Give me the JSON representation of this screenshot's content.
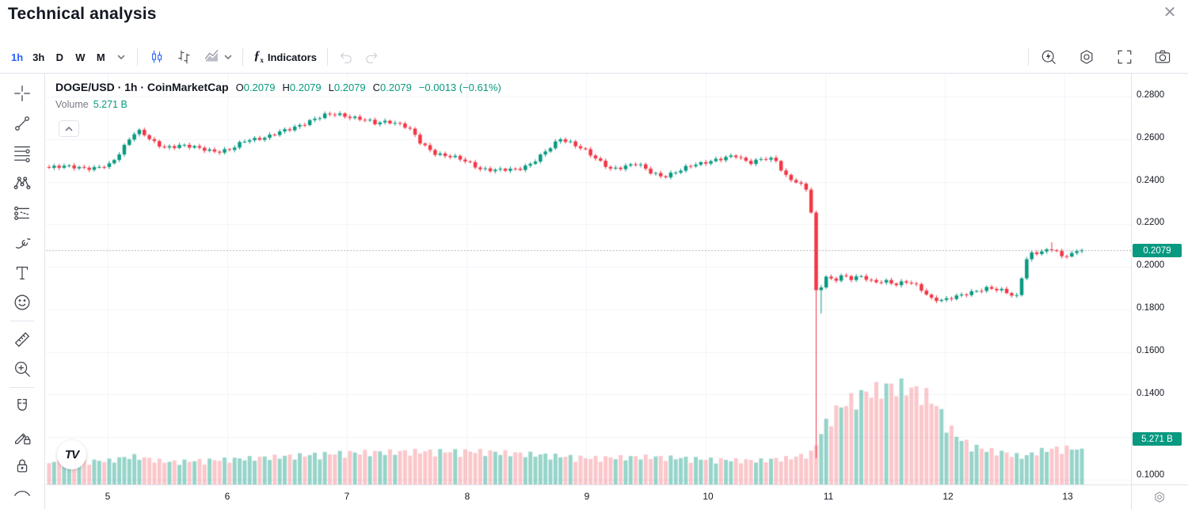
{
  "window": {
    "title": "Technical analysis",
    "close_glyph": "✕"
  },
  "toolbar": {
    "intervals": [
      {
        "label": "1h",
        "active": true
      },
      {
        "label": "3h",
        "active": false
      },
      {
        "label": "D",
        "active": false
      },
      {
        "label": "W",
        "active": false
      },
      {
        "label": "M",
        "active": false
      }
    ],
    "chart_type_icons": [
      "candles-icon",
      "bars-icon",
      "area-icon"
    ],
    "fx_glyph": "ƒ",
    "fx_sub": "x",
    "indicators_label": "Indicators",
    "right_icons": [
      "alert-icon",
      "settings-icon",
      "fullscreen-icon",
      "camera-icon"
    ]
  },
  "sidebar_tools": [
    "crosshair",
    "trend-line",
    "fib-retracement",
    "xabcd-pattern",
    "long-position",
    "brush",
    "text",
    "emoji",
    "ruler",
    "zoom-in",
    "magnet",
    "drawing-mode-lock",
    "lock-all",
    "hide-drawings"
  ],
  "legend": {
    "symbol": "DOGE/USD · 1h · CoinMarketCap",
    "ohlc": [
      {
        "label": "O",
        "value": "0.2079"
      },
      {
        "label": "H",
        "value": "0.2079"
      },
      {
        "label": "L",
        "value": "0.2079"
      },
      {
        "label": "C",
        "value": "0.2079"
      }
    ],
    "change": "−0.0013 (−0.61%)",
    "volume_label": "Volume",
    "volume_value": "5.271 B",
    "collapse_glyph": "⌃",
    "logo_text": "TV"
  },
  "price_axis": {
    "labels": [
      "0.2800",
      "0.2600",
      "0.2400",
      "0.2200",
      "0.2000",
      "0.1800",
      "0.1600",
      "0.1400",
      "0.1000"
    ],
    "price_badge": "0.2079",
    "volume_badge": "5.271 B"
  },
  "time_axis": {
    "labels": [
      "5",
      "6",
      "7",
      "8",
      "9",
      "10",
      "11",
      "12",
      "13"
    ]
  },
  "colors": {
    "up": "#089981",
    "down": "#f23645",
    "volume_up": "rgba(8,153,129,0.42)",
    "volume_down": "rgba(242,54,69,0.28)",
    "grid": "#f0f3fa",
    "price_line": "rgba(120,123,134,0.55)",
    "accent": "#2962ff",
    "text": "#131722",
    "muted": "#787b86",
    "border": "#e0e3eb"
  },
  "chart_data": {
    "type": "candlestick_with_volume",
    "symbol": "DOGE/USD",
    "interval": "1h",
    "source": "CoinMarketCap",
    "last_bar": {
      "open": 0.2079,
      "high": 0.2079,
      "low": 0.2079,
      "close": 0.2079,
      "change": -0.0013,
      "change_pct": -0.61
    },
    "last_price": 0.2079,
    "last_volume_b": 5.271,
    "x_axis": {
      "unit": "day_of_month",
      "labels": [
        5,
        6,
        7,
        8,
        9,
        10,
        11,
        12,
        13
      ],
      "start_day": 4.51,
      "end_day": 13.105,
      "bars_per_day": 24
    },
    "y_axis": {
      "ticks": [
        0.28,
        0.26,
        0.24,
        0.22,
        0.2,
        0.18,
        0.16,
        0.14,
        0.12,
        0.1
      ],
      "min": 0.1,
      "max": 0.29,
      "grid": true
    },
    "price_waypoints": [
      [
        4.51,
        0.2465
      ],
      [
        4.7,
        0.2472
      ],
      [
        4.9,
        0.2462
      ],
      [
        5.02,
        0.2478
      ],
      [
        5.1,
        0.254
      ],
      [
        5.2,
        0.2625
      ],
      [
        5.27,
        0.2638
      ],
      [
        5.36,
        0.2588
      ],
      [
        5.46,
        0.2562
      ],
      [
        5.6,
        0.2572
      ],
      [
        5.75,
        0.2556
      ],
      [
        5.9,
        0.2544
      ],
      [
        6.02,
        0.255
      ],
      [
        6.15,
        0.2595
      ],
      [
        6.32,
        0.2612
      ],
      [
        6.5,
        0.2644
      ],
      [
        6.68,
        0.2688
      ],
      [
        6.8,
        0.271
      ],
      [
        6.9,
        0.2718
      ],
      [
        7.0,
        0.2708
      ],
      [
        7.12,
        0.2692
      ],
      [
        7.22,
        0.2672
      ],
      [
        7.33,
        0.2686
      ],
      [
        7.45,
        0.2668
      ],
      [
        7.52,
        0.2638
      ],
      [
        7.6,
        0.2578
      ],
      [
        7.72,
        0.2535
      ],
      [
        7.85,
        0.2518
      ],
      [
        7.97,
        0.2495
      ],
      [
        8.1,
        0.2462
      ],
      [
        8.25,
        0.2452
      ],
      [
        8.4,
        0.2458
      ],
      [
        8.52,
        0.2488
      ],
      [
        8.65,
        0.2545
      ],
      [
        8.76,
        0.2602
      ],
      [
        8.85,
        0.2585
      ],
      [
        8.95,
        0.2552
      ],
      [
        9.06,
        0.2502
      ],
      [
        9.18,
        0.2462
      ],
      [
        9.3,
        0.2472
      ],
      [
        9.4,
        0.2482
      ],
      [
        9.5,
        0.2448
      ],
      [
        9.62,
        0.2425
      ],
      [
        9.75,
        0.2448
      ],
      [
        9.85,
        0.2478
      ],
      [
        9.97,
        0.2495
      ],
      [
        10.1,
        0.2505
      ],
      [
        10.22,
        0.2522
      ],
      [
        10.33,
        0.2492
      ],
      [
        10.45,
        0.2508
      ],
      [
        10.55,
        0.2498
      ],
      [
        10.62,
        0.2432
      ],
      [
        10.72,
        0.2402
      ],
      [
        10.8,
        0.2368
      ],
      [
        10.84,
        0.2322
      ],
      [
        10.875,
        0.2255
      ],
      [
        10.915,
        0.189
      ],
      [
        10.96,
        0.1955
      ],
      [
        11.03,
        0.1938
      ],
      [
        11.1,
        0.1962
      ],
      [
        11.18,
        0.1942
      ],
      [
        11.27,
        0.1952
      ],
      [
        11.36,
        0.1928
      ],
      [
        11.45,
        0.1938
      ],
      [
        11.55,
        0.1915
      ],
      [
        11.65,
        0.1928
      ],
      [
        11.74,
        0.1908
      ],
      [
        11.84,
        0.1852
      ],
      [
        11.94,
        0.1838
      ],
      [
        12.04,
        0.1858
      ],
      [
        12.16,
        0.1882
      ],
      [
        12.3,
        0.1896
      ],
      [
        12.44,
        0.1888
      ],
      [
        12.5,
        0.1874
      ],
      [
        12.56,
        0.1862
      ],
      [
        12.6,
        0.197
      ],
      [
        12.645,
        0.2055
      ],
      [
        12.72,
        0.2062
      ],
      [
        12.78,
        0.2072
      ],
      [
        12.83,
        0.2082
      ],
      [
        12.87,
        0.2098
      ],
      [
        12.905,
        0.2045
      ],
      [
        12.96,
        0.2056
      ],
      [
        13.02,
        0.2062
      ],
      [
        13.06,
        0.2074
      ],
      [
        13.105,
        0.2079
      ]
    ],
    "volume_waypoints_b": [
      [
        4.51,
        3.4
      ],
      [
        5.0,
        3.6
      ],
      [
        5.2,
        4.3
      ],
      [
        5.5,
        3.4
      ],
      [
        6.0,
        3.8
      ],
      [
        6.6,
        4.4
      ],
      [
        7.0,
        4.8
      ],
      [
        7.6,
        5.0
      ],
      [
        8.1,
        5.0
      ],
      [
        8.5,
        4.6
      ],
      [
        9.0,
        4.0
      ],
      [
        9.5,
        4.2
      ],
      [
        10.0,
        3.8
      ],
      [
        10.4,
        3.6
      ],
      [
        10.7,
        4.1
      ],
      [
        10.85,
        4.8
      ],
      [
        10.92,
        7.5
      ],
      [
        11.0,
        10.5
      ],
      [
        11.15,
        12.6
      ],
      [
        11.3,
        13.9
      ],
      [
        11.45,
        14.7
      ],
      [
        11.58,
        14.9
      ],
      [
        11.7,
        14.3
      ],
      [
        11.82,
        13.4
      ],
      [
        11.9,
        11.6
      ],
      [
        11.98,
        9.0
      ],
      [
        12.06,
        7.2
      ],
      [
        12.16,
        6.0
      ],
      [
        12.28,
        5.3
      ],
      [
        12.42,
        4.9
      ],
      [
        12.55,
        4.4
      ],
      [
        12.62,
        4.2
      ],
      [
        12.72,
        5.0
      ],
      [
        12.85,
        5.4
      ],
      [
        13.0,
        5.5
      ],
      [
        13.105,
        5.271
      ]
    ],
    "crash_bar": {
      "day": 10.885,
      "open": 0.2255,
      "close": 0.189,
      "low": 0.11
    },
    "post_crash_wick": {
      "low": 0.178
    },
    "peak_wick": {
      "day": 12.84,
      "high": 0.2115
    }
  }
}
